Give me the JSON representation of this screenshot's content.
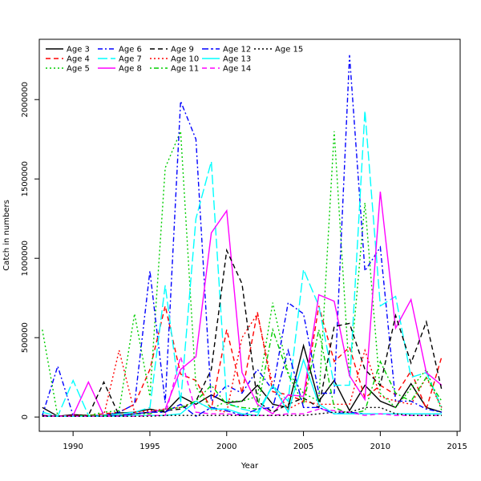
{
  "chart_data": {
    "type": "line",
    "title": "",
    "xlabel": "Year",
    "ylabel": "Catch in numbers",
    "xlim": [
      1987.8,
      2015.2
    ],
    "ylim": [
      -90000,
      2380000
    ],
    "xticks": [
      1990,
      1995,
      2000,
      2005,
      2010,
      2015
    ],
    "yticks": [
      0,
      500000,
      1000000,
      1500000,
      2000000
    ],
    "grid": false,
    "legend_placement": "top-left",
    "x": [
      1988,
      1989,
      1990,
      1991,
      1992,
      1993,
      1994,
      1995,
      1996,
      1997,
      1998,
      1999,
      2000,
      2001,
      2002,
      2003,
      2004,
      2005,
      2006,
      2007,
      2008,
      2009,
      2010,
      2011,
      2012,
      2013,
      2014
    ],
    "series": [
      {
        "name": "Age 3",
        "color": "#000000",
        "dash": "solid",
        "values": [
          60000,
          5000,
          15000,
          10000,
          10000,
          25000,
          30000,
          50000,
          30000,
          130000,
          80000,
          140000,
          90000,
          100000,
          200000,
          80000,
          60000,
          450000,
          100000,
          230000,
          40000,
          200000,
          100000,
          60000,
          210000,
          60000,
          30000
        ]
      },
      {
        "name": "Age 4",
        "color": "#ff0000",
        "dash": "dashed",
        "values": [
          10000,
          5000,
          10000,
          10000,
          20000,
          30000,
          80000,
          300000,
          700000,
          270000,
          230000,
          50000,
          550000,
          150000,
          660000,
          160000,
          140000,
          100000,
          700000,
          350000,
          440000,
          120000,
          200000,
          140000,
          290000,
          50000,
          380000
        ]
      },
      {
        "name": "Age 5",
        "color": "#00cd00",
        "dash": "dotted",
        "values": [
          550000,
          5000,
          10000,
          10000,
          30000,
          40000,
          650000,
          130000,
          1570000,
          1800000,
          190000,
          50000,
          100000,
          100000,
          130000,
          720000,
          280000,
          150000,
          100000,
          1800000,
          250000,
          1350000,
          150000,
          60000,
          180000,
          300000,
          40000
        ]
      },
      {
        "name": "Age 6",
        "color": "#0000ff",
        "dash": "dashdot",
        "values": [
          10000,
          320000,
          10000,
          10000,
          10000,
          30000,
          80000,
          920000,
          90000,
          1990000,
          1750000,
          100000,
          200000,
          150000,
          300000,
          170000,
          720000,
          650000,
          150000,
          150000,
          2280000,
          920000,
          1070000,
          100000,
          100000,
          50000,
          30000
        ]
      },
      {
        "name": "Age 7",
        "color": "#00ffff",
        "dash": "longdash",
        "values": [
          30000,
          5000,
          230000,
          10000,
          10000,
          20000,
          30000,
          60000,
          830000,
          90000,
          1250000,
          1610000,
          90000,
          50000,
          30000,
          200000,
          100000,
          930000,
          700000,
          200000,
          200000,
          1930000,
          700000,
          760000,
          250000,
          280000,
          60000
        ]
      },
      {
        "name": "Age 8",
        "color": "#ff00ff",
        "dash": "solid",
        "values": [
          10000,
          5000,
          10000,
          220000,
          10000,
          10000,
          20000,
          30000,
          50000,
          300000,
          380000,
          1160000,
          1300000,
          280000,
          80000,
          20000,
          140000,
          130000,
          770000,
          730000,
          260000,
          110000,
          1420000,
          560000,
          740000,
          280000,
          200000
        ]
      },
      {
        "name": "Age 9",
        "color": "#000000",
        "dash": "dashed",
        "values": [
          10000,
          5000,
          10000,
          10000,
          220000,
          10000,
          20000,
          30000,
          40000,
          50000,
          100000,
          300000,
          1050000,
          840000,
          100000,
          30000,
          80000,
          120000,
          60000,
          570000,
          590000,
          300000,
          200000,
          640000,
          340000,
          600000,
          170000
        ]
      },
      {
        "name": "Age 10",
        "color": "#ff0000",
        "dash": "dotted",
        "values": [
          5000,
          5000,
          10000,
          10000,
          10000,
          420000,
          30000,
          40000,
          50000,
          60000,
          100000,
          50000,
          30000,
          500000,
          650000,
          200000,
          50000,
          100000,
          80000,
          80000,
          80000,
          420000,
          130000,
          100000,
          80000,
          250000,
          60000
        ]
      },
      {
        "name": "Age 11",
        "color": "#00cd00",
        "dash": "dotdash",
        "values": [
          5000,
          5000,
          5000,
          10000,
          10000,
          10000,
          20000,
          20000,
          50000,
          60000,
          100000,
          200000,
          80000,
          60000,
          50000,
          550000,
          270000,
          80000,
          550000,
          60000,
          20000,
          40000,
          350000,
          150000,
          100000,
          250000,
          100000
        ]
      },
      {
        "name": "Age 12",
        "color": "#0000ff",
        "dash": "twodash",
        "values": [
          5000,
          5000,
          5000,
          5000,
          5000,
          10000,
          20000,
          30000,
          30000,
          80000,
          5000,
          60000,
          40000,
          10000,
          50000,
          60000,
          420000,
          60000,
          60000,
          20000,
          30000,
          20000,
          20000,
          20000,
          20000,
          20000,
          20000
        ]
      },
      {
        "name": "Age 13",
        "color": "#00ffff",
        "dash": "solid",
        "values": [
          5000,
          5000,
          5000,
          5000,
          5000,
          5000,
          10000,
          10000,
          10000,
          20000,
          100000,
          50000,
          50000,
          20000,
          10000,
          200000,
          30000,
          360000,
          80000,
          20000,
          20000,
          20000,
          20000,
          20000,
          20000,
          20000,
          20000
        ]
      },
      {
        "name": "Age 14",
        "color": "#ff00ff",
        "dash": "dashed",
        "values": [
          5000,
          5000,
          5000,
          5000,
          5000,
          5000,
          5000,
          10000,
          10000,
          380000,
          30000,
          20000,
          20000,
          10000,
          10000,
          10000,
          20000,
          20000,
          50000,
          40000,
          30000,
          10000,
          20000,
          10000,
          10000,
          10000,
          10000
        ]
      },
      {
        "name": "Age 15",
        "color": "#000000",
        "dash": "dotted",
        "values": [
          5000,
          5000,
          5000,
          5000,
          5000,
          5000,
          5000,
          5000,
          10000,
          10000,
          10000,
          10000,
          10000,
          10000,
          10000,
          10000,
          10000,
          10000,
          20000,
          30000,
          30000,
          60000,
          60000,
          20000,
          10000,
          10000,
          10000
        ]
      }
    ]
  }
}
